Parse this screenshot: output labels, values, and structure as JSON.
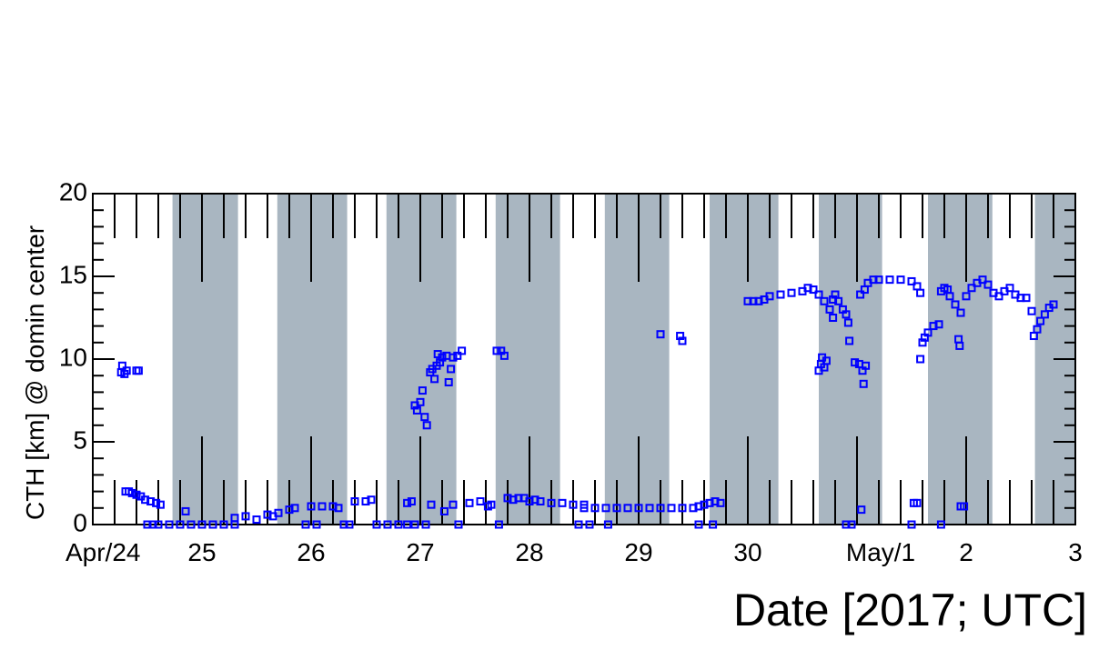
{
  "chart_data": {
    "type": "scatter",
    "ylabel": "CTH [km] @ domin center",
    "xlabel": "Date [2017; UTC]",
    "xlim": [
      0,
      9
    ],
    "ylim": [
      0,
      20
    ],
    "xticks": [
      {
        "value": 0,
        "label": "Apr/24"
      },
      {
        "value": 1,
        "label": "25"
      },
      {
        "value": 2,
        "label": "26"
      },
      {
        "value": 3,
        "label": "27"
      },
      {
        "value": 4,
        "label": "28"
      },
      {
        "value": 5,
        "label": "29"
      },
      {
        "value": 6,
        "label": "30"
      },
      {
        "value": 7,
        "label": "May/1"
      },
      {
        "value": 8,
        "label": "2"
      },
      {
        "value": 9,
        "label": "3"
      }
    ],
    "yticks": [
      0,
      5,
      10,
      15,
      20
    ],
    "x_minor_per_major": 5,
    "y_minor_per_major": 5,
    "shaded_regions": [
      [
        0.73,
        1.33
      ],
      [
        1.69,
        2.33
      ],
      [
        2.69,
        3.33
      ],
      [
        3.69,
        4.28
      ],
      [
        4.69,
        5.28
      ],
      [
        5.65,
        6.28
      ],
      [
        6.65,
        7.23
      ],
      [
        7.65,
        8.24
      ],
      [
        8.63,
        9
      ]
    ],
    "shade_color": "#a9b6c1",
    "color": "#0000ff",
    "marker": "open-square",
    "x": [
      0.26,
      0.27,
      0.29,
      0.31,
      0.4,
      0.42,
      0.3,
      0.33,
      0.36,
      0.4,
      0.44,
      0.48,
      0.53,
      0.58,
      0.62,
      0.5,
      0.55,
      0.6,
      0.7,
      0.8,
      0.9,
      1.0,
      1.1,
      1.2,
      1.3,
      0.85,
      1.3,
      1.4,
      1.5,
      1.6,
      1.65,
      1.7,
      1.8,
      1.85,
      1.95,
      2.05,
      2.0,
      2.1,
      2.2,
      2.25,
      2.3,
      2.35,
      2.4,
      2.5,
      2.55,
      2.6,
      2.7,
      2.8,
      2.88,
      2.88,
      2.92,
      2.95,
      3.05,
      3.35,
      2.95,
      2.97,
      3.0,
      3.02,
      3.04,
      3.06,
      3.09,
      3.11,
      3.13,
      3.15,
      3.16,
      3.18,
      3.2,
      3.24,
      3.26,
      3.28,
      3.3,
      3.34,
      3.38,
      3.1,
      3.3,
      3.22,
      3.45,
      3.55,
      3.65,
      3.62,
      3.7,
      3.74,
      3.77,
      3.8,
      3.85,
      3.9,
      3.95,
      4.0,
      4.05,
      4.1,
      4.2,
      4.3,
      4.4,
      4.5,
      3.72,
      4.5,
      4.6,
      4.7,
      4.8,
      4.9,
      5.0,
      5.1,
      5.2,
      5.3,
      5.4,
      5.5,
      5.55,
      4.45,
      4.55,
      4.72,
      5.2,
      5.38,
      5.4,
      5.55,
      5.68,
      5.6,
      5.65,
      5.7,
      5.75,
      6.0,
      6.05,
      6.1,
      6.15,
      6.2,
      6.3,
      6.4,
      6.5,
      6.55,
      6.6,
      6.65,
      6.7,
      6.75,
      6.78,
      6.65,
      6.67,
      6.68,
      6.7,
      6.72,
      6.9,
      6.95,
      6.78,
      6.8,
      6.83,
      6.87,
      6.9,
      6.92,
      6.93,
      6.98,
      7.02,
      7.05,
      7.06,
      7.08,
      7.04,
      7.03,
      7.07,
      7.1,
      7.15,
      7.2,
      7.3,
      7.4,
      7.5,
      7.55,
      7.58,
      7.5,
      7.52,
      7.55,
      7.58,
      7.6,
      7.62,
      7.65,
      7.7,
      7.75,
      7.77,
      7.77,
      7.8,
      7.83,
      7.85,
      7.9,
      7.95,
      7.93,
      7.94,
      7.95,
      7.98,
      8.0,
      8.05,
      8.1,
      8.15,
      8.2,
      8.25,
      8.3,
      8.35,
      8.4,
      8.45,
      8.5,
      8.55,
      8.6,
      8.62,
      8.65,
      8.68,
      8.72,
      8.76,
      8.8
    ],
    "values": [
      9.2,
      9.6,
      9.1,
      9.3,
      9.3,
      9.3,
      2.0,
      2.0,
      1.9,
      1.8,
      1.7,
      1.5,
      1.4,
      1.3,
      1.2,
      0,
      0,
      0,
      0,
      0,
      0,
      0,
      0,
      0,
      0,
      0.8,
      0.4,
      0.5,
      0.3,
      0.6,
      0.5,
      0.7,
      0.9,
      1.0,
      0,
      0,
      1.1,
      1.1,
      1.1,
      1.0,
      0,
      0,
      1.4,
      1.4,
      1.5,
      0,
      0,
      0,
      0,
      1.3,
      1.4,
      0,
      0,
      0,
      7.2,
      6.9,
      7.4,
      8.1,
      6.5,
      6.0,
      9.2,
      9.4,
      8.8,
      9.6,
      10.3,
      9.8,
      10.1,
      10.2,
      8.6,
      9.4,
      10.1,
      10.2,
      10.5,
      1.2,
      1.2,
      0.8,
      1.3,
      1.4,
      1.2,
      1.1,
      10.5,
      10.5,
      10.2,
      1.6,
      1.5,
      1.6,
      1.6,
      1.4,
      1.5,
      1.4,
      1.3,
      1.3,
      1.2,
      1.2,
      0,
      1.0,
      1.0,
      1.0,
      1.0,
      1.0,
      1.0,
      1.0,
      1.0,
      1.0,
      1.0,
      1.0,
      1.1,
      0,
      0,
      0,
      11.5,
      11.4,
      11.1,
      0,
      0,
      1.2,
      1.3,
      1.4,
      1.3,
      13.5,
      13.5,
      13.5,
      13.6,
      13.8,
      13.9,
      14.0,
      14.1,
      14.3,
      14.2,
      13.9,
      13.5,
      13.0,
      12.5,
      9.3,
      9.7,
      10.1,
      9.5,
      9.9,
      0,
      0,
      13.6,
      13.9,
      13.5,
      13.0,
      12.7,
      12.2,
      11.1,
      9.8,
      9.7,
      9.3,
      8.5,
      9.6,
      0.9,
      13.9,
      14.2,
      14.6,
      14.8,
      14.8,
      14.8,
      14.8,
      14.7,
      14.4,
      14.0,
      0,
      1.3,
      1.3,
      10.0,
      11.0,
      11.3,
      11.6,
      12.0,
      12.1,
      0,
      14.1,
      14.3,
      14.2,
      13.8,
      13.3,
      12.8,
      11.2,
      10.8,
      1.1,
      1.1,
      13.8,
      14.3,
      14.6,
      14.8,
      14.5,
      14.0,
      13.8,
      14.1,
      14.3,
      13.9,
      13.7,
      13.7,
      12.9,
      11.4,
      11.8,
      12.3,
      12.7,
      13.1,
      13.3
    ]
  }
}
